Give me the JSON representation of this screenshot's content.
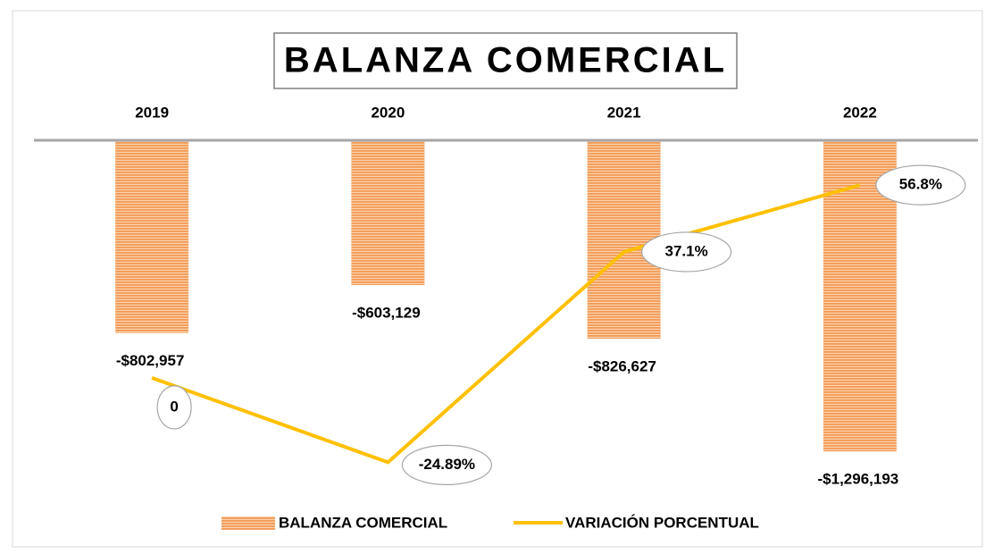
{
  "chart_data": {
    "type": "bar_line",
    "title": "BALANZA COMERCIAL",
    "categories": [
      "2019",
      "2020",
      "2021",
      "2022"
    ],
    "series": [
      {
        "name": "BALANZA COMERCIAL",
        "type": "bar",
        "color": "#f29a55",
        "values": [
          -802957,
          -603129,
          -826627,
          -1296193
        ],
        "value_labels": [
          "-$802,957",
          "-$603,129",
          "-$826,627",
          "-$1,296,193"
        ]
      },
      {
        "name": "VARIACIÓN PORCENTUAL",
        "type": "line",
        "axis": "y2",
        "color": "#ffc000",
        "values": [
          0,
          -24.89,
          37.1,
          56.8
        ],
        "value_labels": [
          "0",
          "-24.89%",
          "37.1%",
          "56.8%"
        ]
      }
    ],
    "ylim": [
      -1400000,
      0
    ],
    "y2lim": [
      -29,
      70
    ],
    "legend": "bottom"
  }
}
